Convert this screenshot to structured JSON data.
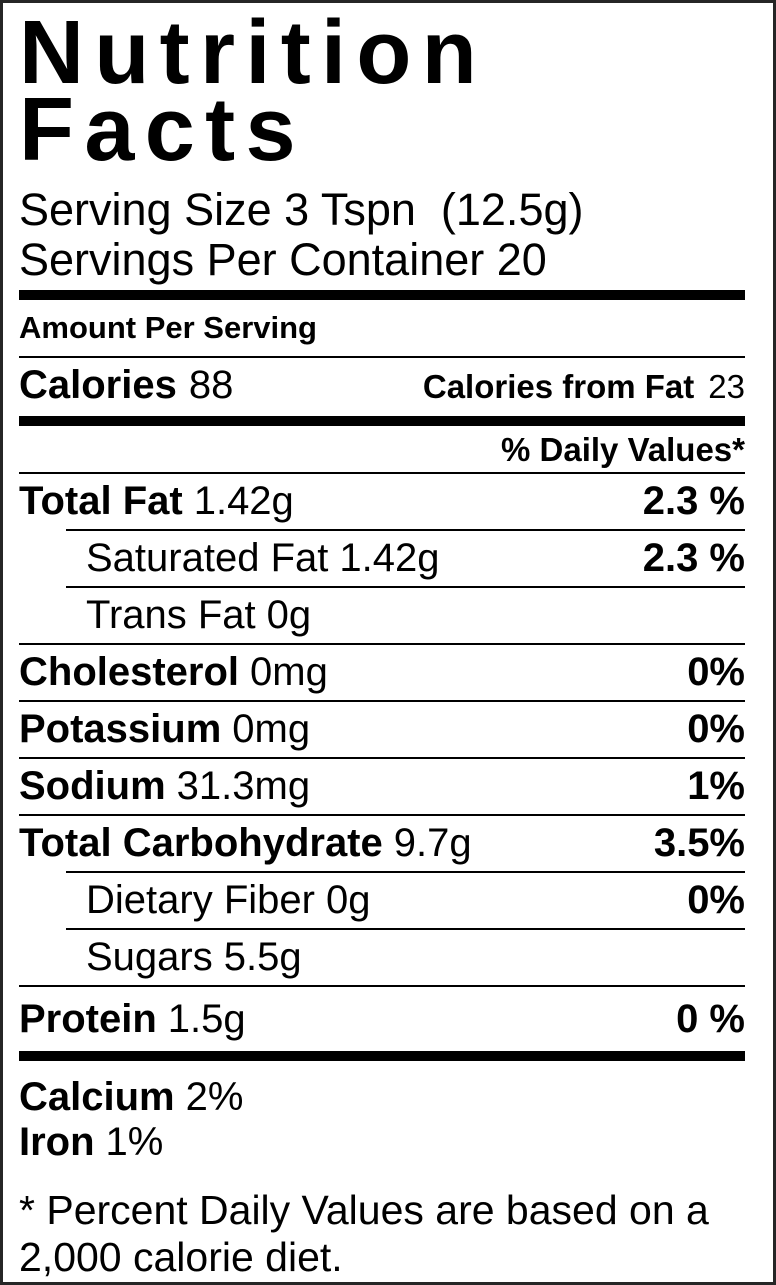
{
  "title": {
    "line1": "Nutrition",
    "line2": "Facts"
  },
  "serving": {
    "size_line": "Serving Size 3 Tspn  (12.5g)",
    "per_container_line": "Servings Per Container 20"
  },
  "amount_per_serving_label": "Amount Per Serving",
  "calories": {
    "label": "Calories",
    "value": "88",
    "from_fat_label": "Calories from Fat",
    "from_fat_value": "23"
  },
  "daily_values_header": "% Daily Values*",
  "nutrients": [
    {
      "label": "Total Fat",
      "amount": "1.42g",
      "dv": "2.3 %",
      "indent": false
    },
    {
      "label": "Saturated Fat",
      "amount": "1.42g",
      "dv": "2.3 %",
      "indent": true
    },
    {
      "label": "Trans Fat",
      "amount": "0g",
      "dv": "",
      "indent": true
    },
    {
      "label": "Cholesterol",
      "amount": "0mg",
      "dv": "0%",
      "indent": false
    },
    {
      "label": "Potassium",
      "amount": "0mg",
      "dv": "0%",
      "indent": false
    },
    {
      "label": "Sodium",
      "amount": "31.3mg",
      "dv": "1%",
      "indent": false
    },
    {
      "label": "Total Carbohydrate",
      "amount": "9.7g",
      "dv": "3.5%",
      "indent": false
    },
    {
      "label": "Dietary Fiber",
      "amount": "0g",
      "dv": "0%",
      "indent": true
    },
    {
      "label": "Sugars",
      "amount": "5.5g",
      "dv": "",
      "indent": true
    },
    {
      "label": "Protein",
      "amount": "1.5g",
      "dv": "0 %",
      "indent": false
    }
  ],
  "minerals": [
    {
      "label": "Calcium",
      "value": "2%"
    },
    {
      "label": "Iron",
      "value": "1%"
    }
  ],
  "footnote": "* Percent Daily Values are based on a 2,000 calorie diet.",
  "colors": {
    "text": "#000000",
    "background": "#ffffff",
    "border": "#262626",
    "separator_bar": "#000000"
  }
}
